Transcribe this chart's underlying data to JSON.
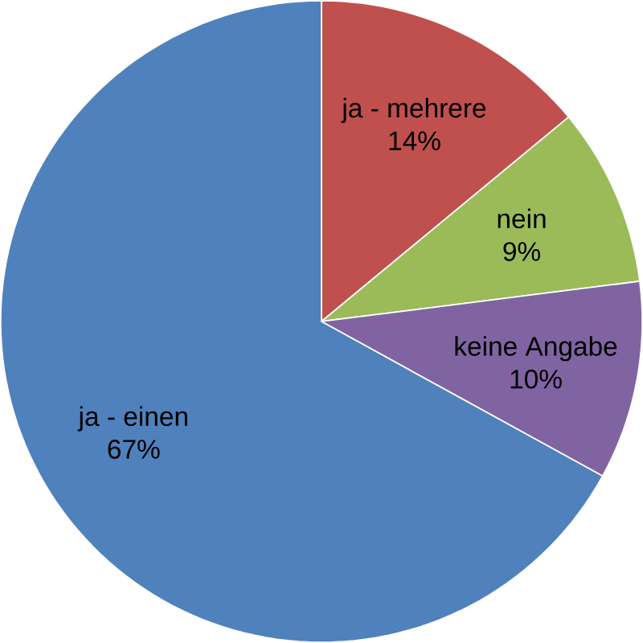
{
  "chart_data": {
    "type": "pie",
    "categories": [
      "ja - mehrere",
      "nein",
      "keine Angabe",
      "ja - einen"
    ],
    "values": [
      14,
      9,
      10,
      67
    ],
    "value_labels": [
      "14%",
      "9%",
      "10%",
      "67%"
    ],
    "colors": [
      "#c0504d",
      "#9bbb59",
      "#8064a2",
      "#4f81bd"
    ]
  }
}
